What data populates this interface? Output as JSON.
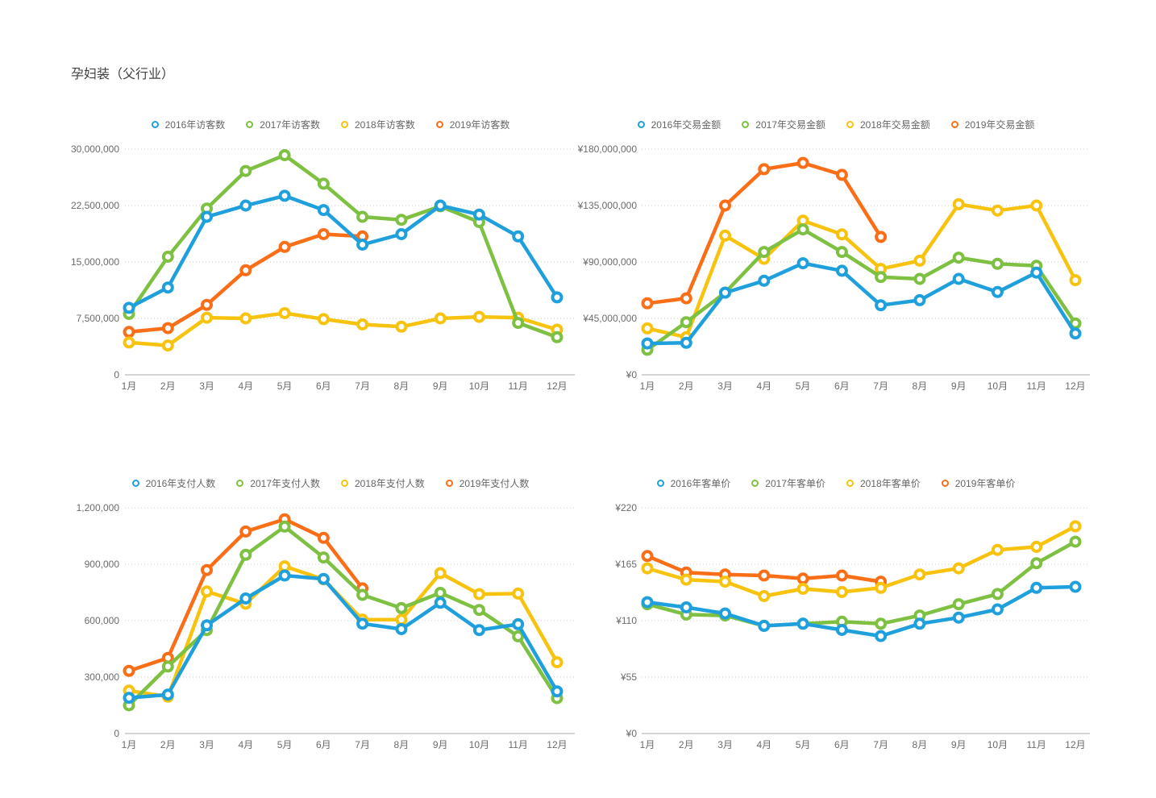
{
  "page": {
    "title": "孕妇装（父行业）"
  },
  "chart_data": [
    {
      "type": "line",
      "name": "visitors",
      "legend_position": "top",
      "grid": "horizontal-dotted",
      "categories": [
        "1月",
        "2月",
        "3月",
        "4月",
        "5月",
        "6月",
        "7月",
        "8月",
        "9月",
        "10月",
        "11月",
        "12月"
      ],
      "ylim": [
        0,
        30000000
      ],
      "y_ticks": [
        "30,000,000",
        "22,500,000",
        "15,000,000",
        "7,500,000",
        "0"
      ],
      "series": [
        {
          "name": "2016年访客数",
          "color": "#1FA0DC",
          "values": [
            8900000,
            11600000,
            21000000,
            22500000,
            23800000,
            21900000,
            17300000,
            18700000,
            22500000,
            21300000,
            18400000,
            10300000
          ]
        },
        {
          "name": "2017年访客数",
          "color": "#7DC042",
          "values": [
            8100000,
            15700000,
            22100000,
            27100000,
            29200000,
            25400000,
            21000000,
            20600000,
            22400000,
            20300000,
            6900000,
            5000000
          ]
        },
        {
          "name": "2018年访客数",
          "color": "#F8C30F",
          "values": [
            4300000,
            3900000,
            7600000,
            7500000,
            8200000,
            7400000,
            6700000,
            6400000,
            7500000,
            7700000,
            7600000,
            6000000
          ]
        },
        {
          "name": "2019年访客数",
          "color": "#FA6E17",
          "values": [
            5700000,
            6200000,
            9300000,
            13900000,
            17000000,
            18700000,
            18400000
          ]
        }
      ]
    },
    {
      "type": "line",
      "name": "transaction-amount",
      "legend_position": "top",
      "grid": "horizontal-dotted",
      "categories": [
        "1月",
        "2月",
        "3月",
        "4月",
        "5月",
        "6月",
        "7月",
        "8月",
        "9月",
        "10月",
        "11月",
        "12月"
      ],
      "ylim": [
        0,
        180000000
      ],
      "y_ticks": [
        "¥180,000,000",
        "¥135,000,000",
        "¥90,000,000",
        "¥45,000,000",
        "¥0"
      ],
      "series": [
        {
          "name": "2016年交易金额",
          "color": "#1FA0DC",
          "values": [
            25000000,
            25500000,
            65500000,
            75000000,
            89000000,
            83000000,
            55500000,
            59500000,
            76500000,
            66000000,
            81500000,
            33000000
          ]
        },
        {
          "name": "2017年交易金额",
          "color": "#7DC042",
          "values": [
            20000000,
            42000000,
            65500000,
            98000000,
            116000000,
            98000000,
            78000000,
            76500000,
            93500000,
            88500000,
            87000000,
            41000000
          ]
        },
        {
          "name": "2018年交易金额",
          "color": "#F8C30F",
          "values": [
            37000000,
            30000000,
            111000000,
            92500000,
            123000000,
            112000000,
            84500000,
            91000000,
            136000000,
            131000000,
            135000000,
            75500000
          ]
        },
        {
          "name": "2019年交易金额",
          "color": "#FA6E17",
          "values": [
            57000000,
            61000000,
            135000000,
            164000000,
            169000000,
            159500000,
            110000000
          ]
        }
      ]
    },
    {
      "type": "line",
      "name": "payers",
      "legend_position": "top",
      "grid": "horizontal-dotted",
      "categories": [
        "1月",
        "2月",
        "3月",
        "4月",
        "5月",
        "6月",
        "7月",
        "8月",
        "9月",
        "10月",
        "11月",
        "12月"
      ],
      "ylim": [
        0,
        1200000
      ],
      "y_ticks": [
        "1,200,000",
        "900,000",
        "600,000",
        "300,000",
        "0"
      ],
      "series": [
        {
          "name": "2016年支付人数",
          "color": "#1FA0DC",
          "values": [
            190000,
            207000,
            575000,
            718000,
            840000,
            822000,
            584000,
            555000,
            695000,
            550000,
            581000,
            224000
          ]
        },
        {
          "name": "2017年支付人数",
          "color": "#7DC042",
          "values": [
            150000,
            356000,
            550000,
            950000,
            1100000,
            936000,
            737000,
            667000,
            748000,
            657000,
            517000,
            188000
          ]
        },
        {
          "name": "2018年支付人数",
          "color": "#F8C30F",
          "values": [
            228000,
            196000,
            755000,
            690000,
            889000,
            820000,
            605000,
            605000,
            853000,
            741000,
            744000,
            379000
          ]
        },
        {
          "name": "2019年支付人数",
          "color": "#FA6E17",
          "values": [
            333000,
            402000,
            869000,
            1074000,
            1139000,
            1040000,
            772000
          ]
        }
      ]
    },
    {
      "type": "line",
      "name": "average-order-value",
      "legend_position": "top",
      "grid": "horizontal-dotted",
      "categories": [
        "1月",
        "2月",
        "3月",
        "4月",
        "5月",
        "6月",
        "7月",
        "8月",
        "9月",
        "10月",
        "11月",
        "12月"
      ],
      "ylim": [
        0,
        220
      ],
      "y_ticks": [
        "¥220",
        "¥165",
        "¥110",
        "¥55",
        "¥0"
      ],
      "series": [
        {
          "name": "2016年客单价",
          "color": "#1FA0DC",
          "values": [
            128,
            123,
            117,
            105,
            107,
            101,
            95,
            107,
            113,
            121,
            142,
            143
          ]
        },
        {
          "name": "2017年客单价",
          "color": "#7DC042",
          "values": [
            126,
            116,
            115,
            105,
            107,
            109,
            107,
            115,
            126,
            136,
            166,
            187
          ]
        },
        {
          "name": "2018年客单价",
          "color": "#F8C30F",
          "values": [
            161,
            150,
            148,
            134,
            141,
            138,
            142,
            155,
            161,
            179,
            182,
            202
          ]
        },
        {
          "name": "2019年客单价",
          "color": "#FA6E17",
          "values": [
            173,
            157,
            155,
            154,
            151,
            154,
            148
          ]
        }
      ]
    }
  ]
}
